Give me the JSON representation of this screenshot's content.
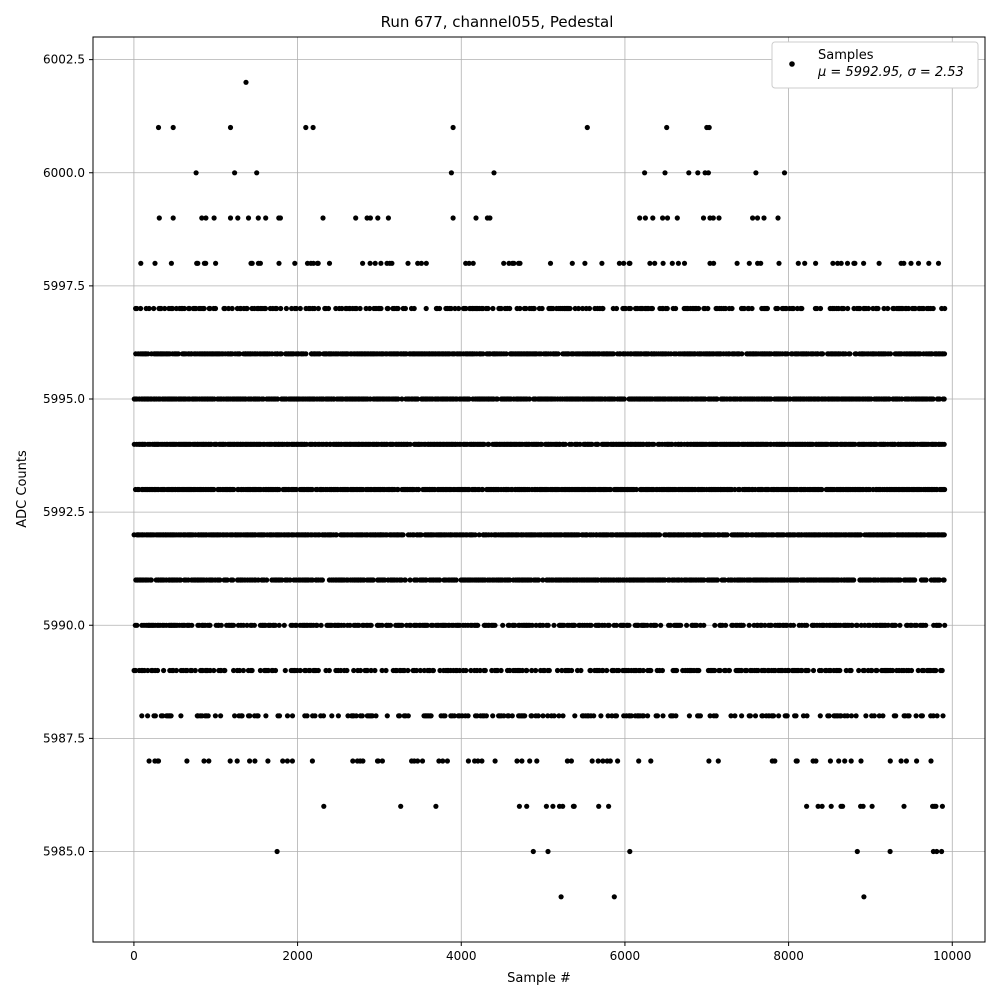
{
  "chart_data": {
    "type": "scatter",
    "title": "Run 677, channel055, Pedestal",
    "xlabel": "Sample #",
    "ylabel": "ADC Counts",
    "xlim": [
      -500,
      10400
    ],
    "ylim": [
      5983,
      6003
    ],
    "xticks": [
      0,
      2000,
      4000,
      6000,
      8000,
      10000
    ],
    "xtick_labels": [
      "0",
      "2000",
      "4000",
      "6000",
      "8000",
      "10000"
    ],
    "yticks": [
      5985.0,
      5987.5,
      5990.0,
      5992.5,
      5995.0,
      5997.5,
      6000.0,
      6002.5
    ],
    "ytick_labels": [
      "5985.0",
      "5987.5",
      "5990.0",
      "5992.5",
      "5995.0",
      "5997.5",
      "6000.0",
      "6002.5"
    ],
    "grid": true,
    "legend_position": "top-right",
    "marker_color": "#000000",
    "series": [
      {
        "name": "Samples",
        "stats_label": "μ = 5992.95, σ = 2.53",
        "x_range": [
          0,
          9900
        ],
        "levels": [
          {
            "y": 5996,
            "density": 0.75
          },
          {
            "y": 5995,
            "density": 0.8
          },
          {
            "y": 5994,
            "density": 0.85
          },
          {
            "y": 5993,
            "density": 0.85
          },
          {
            "y": 5992,
            "density": 0.85
          },
          {
            "y": 5991,
            "density": 0.75
          },
          {
            "y": 5990,
            "density": 0.55
          },
          {
            "y": 5989,
            "density": 0.45
          },
          {
            "y": 5997,
            "density": 0.45
          },
          {
            "y": 5988,
            "density": 0.3
          },
          {
            "y": 5998,
            "density": 0.12
          },
          {
            "y": 5987,
            "density": 0.1
          }
        ],
        "points": [
          {
            "x": 1370,
            "y": 6002
          },
          {
            "x": 300,
            "y": 6001
          },
          {
            "x": 480,
            "y": 6001
          },
          {
            "x": 1180,
            "y": 6001
          },
          {
            "x": 2100,
            "y": 6001
          },
          {
            "x": 2190,
            "y": 6001
          },
          {
            "x": 3900,
            "y": 6001
          },
          {
            "x": 5540,
            "y": 6001
          },
          {
            "x": 6510,
            "y": 6001
          },
          {
            "x": 7000,
            "y": 6001
          },
          {
            "x": 7030,
            "y": 6001
          },
          {
            "x": 760,
            "y": 6000
          },
          {
            "x": 1230,
            "y": 6000
          },
          {
            "x": 1500,
            "y": 6000
          },
          {
            "x": 3880,
            "y": 6000
          },
          {
            "x": 4400,
            "y": 6000
          },
          {
            "x": 6240,
            "y": 6000
          },
          {
            "x": 6490,
            "y": 6000
          },
          {
            "x": 6780,
            "y": 6000
          },
          {
            "x": 6890,
            "y": 6000
          },
          {
            "x": 6980,
            "y": 6000
          },
          {
            "x": 7020,
            "y": 6000
          },
          {
            "x": 7600,
            "y": 6000
          },
          {
            "x": 7950,
            "y": 6000
          },
          {
            "x": 310,
            "y": 5999
          },
          {
            "x": 480,
            "y": 5999
          },
          {
            "x": 830,
            "y": 5999
          },
          {
            "x": 880,
            "y": 5999
          },
          {
            "x": 980,
            "y": 5999
          },
          {
            "x": 1180,
            "y": 5999
          },
          {
            "x": 1270,
            "y": 5999
          },
          {
            "x": 1400,
            "y": 5999
          },
          {
            "x": 1520,
            "y": 5999
          },
          {
            "x": 1610,
            "y": 5999
          },
          {
            "x": 1770,
            "y": 5999
          },
          {
            "x": 1790,
            "y": 5999
          },
          {
            "x": 2310,
            "y": 5999
          },
          {
            "x": 2710,
            "y": 5999
          },
          {
            "x": 2850,
            "y": 5999
          },
          {
            "x": 2890,
            "y": 5999
          },
          {
            "x": 2980,
            "y": 5999
          },
          {
            "x": 3110,
            "y": 5999
          },
          {
            "x": 3900,
            "y": 5999
          },
          {
            "x": 4180,
            "y": 5999
          },
          {
            "x": 4320,
            "y": 5999
          },
          {
            "x": 4350,
            "y": 5999
          },
          {
            "x": 6180,
            "y": 5999
          },
          {
            "x": 6250,
            "y": 5999
          },
          {
            "x": 6340,
            "y": 5999
          },
          {
            "x": 6460,
            "y": 5999
          },
          {
            "x": 6520,
            "y": 5999
          },
          {
            "x": 6640,
            "y": 5999
          },
          {
            "x": 6960,
            "y": 5999
          },
          {
            "x": 7040,
            "y": 5999
          },
          {
            "x": 7080,
            "y": 5999
          },
          {
            "x": 7150,
            "y": 5999
          },
          {
            "x": 7560,
            "y": 5999
          },
          {
            "x": 7620,
            "y": 5999
          },
          {
            "x": 7700,
            "y": 5999
          },
          {
            "x": 7870,
            "y": 5999
          },
          {
            "x": 1750,
            "y": 5985
          },
          {
            "x": 4880,
            "y": 5985
          },
          {
            "x": 5060,
            "y": 5985
          },
          {
            "x": 6060,
            "y": 5985
          },
          {
            "x": 8840,
            "y": 5985
          },
          {
            "x": 9240,
            "y": 5985
          },
          {
            "x": 9770,
            "y": 5985
          },
          {
            "x": 9810,
            "y": 5985
          },
          {
            "x": 9870,
            "y": 5985
          },
          {
            "x": 5220,
            "y": 5984
          },
          {
            "x": 5870,
            "y": 5984
          },
          {
            "x": 8920,
            "y": 5984
          },
          {
            "x": 2320,
            "y": 5986
          },
          {
            "x": 3260,
            "y": 5986
          },
          {
            "x": 3690,
            "y": 5986
          },
          {
            "x": 4710,
            "y": 5986
          },
          {
            "x": 4800,
            "y": 5986
          },
          {
            "x": 5040,
            "y": 5986
          },
          {
            "x": 5120,
            "y": 5986
          },
          {
            "x": 5200,
            "y": 5986
          },
          {
            "x": 5240,
            "y": 5986
          },
          {
            "x": 5370,
            "y": 5986
          },
          {
            "x": 5380,
            "y": 5986
          },
          {
            "x": 5680,
            "y": 5986
          },
          {
            "x": 5800,
            "y": 5986
          },
          {
            "x": 8220,
            "y": 5986
          },
          {
            "x": 8360,
            "y": 5986
          },
          {
            "x": 8410,
            "y": 5986
          },
          {
            "x": 8520,
            "y": 5986
          },
          {
            "x": 8640,
            "y": 5986
          },
          {
            "x": 8660,
            "y": 5986
          },
          {
            "x": 8880,
            "y": 5986
          },
          {
            "x": 8910,
            "y": 5986
          },
          {
            "x": 9020,
            "y": 5986
          },
          {
            "x": 9410,
            "y": 5986
          },
          {
            "x": 9760,
            "y": 5986
          },
          {
            "x": 9780,
            "y": 5986
          },
          {
            "x": 9800,
            "y": 5986
          },
          {
            "x": 9880,
            "y": 5986
          }
        ]
      }
    ]
  }
}
